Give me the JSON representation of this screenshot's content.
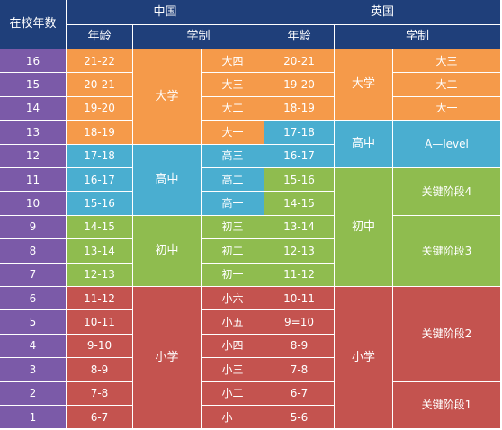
{
  "headers": {
    "years_in_school": "在校年数",
    "china": "中国",
    "uk": "英国",
    "china_age": "年龄",
    "china_system": "学制",
    "uk_age": "年龄",
    "uk_system": "学制"
  },
  "colors": {
    "header": "#1f3f7a",
    "years": "#7b5aa8",
    "university": "#f59a4a",
    "high_school": "#4aaed0",
    "middle_school": "#8fbc4f",
    "primary_school": "#c4534f"
  },
  "years": [
    "16",
    "15",
    "14",
    "13",
    "12",
    "11",
    "10",
    "9",
    "8",
    "7",
    "6",
    "5",
    "4",
    "3",
    "2",
    "1"
  ],
  "china_ages": [
    "21-22",
    "20-21",
    "19-20",
    "18-19",
    "17-18",
    "16-17",
    "15-16",
    "14-15",
    "13-14",
    "12-13",
    "11-12",
    "10-11",
    "9-10",
    "8-9",
    "7-8",
    "6-7"
  ],
  "china_grades": [
    "大四",
    "大三",
    "大二",
    "大一",
    "高三",
    "高二",
    "高一",
    "初三",
    "初二",
    "初一",
    "小六",
    "小五",
    "小四",
    "小三",
    "小二",
    "小一"
  ],
  "china_stages": [
    {
      "label": "大学",
      "color": "university",
      "start": 0,
      "span": 4
    },
    {
      "label": "高中",
      "color": "high_school",
      "start": 4,
      "span": 3
    },
    {
      "label": "初中",
      "color": "middle_school",
      "start": 7,
      "span": 3
    },
    {
      "label": "小学",
      "color": "primary_school",
      "start": 10,
      "span": 6
    }
  ],
  "uk_ages": [
    "20-21",
    "19-20",
    "18-19",
    "17-18",
    "16-17",
    "15-16",
    "14-15",
    "13-14",
    "12-13",
    "11-12",
    "10-11",
    "9=10",
    "8-9",
    "7-8",
    "6-7",
    "5-6"
  ],
  "uk_age_colors": [
    "university",
    "university",
    "university",
    "high_school",
    "high_school",
    "middle_school",
    "middle_school",
    "middle_school",
    "middle_school",
    "middle_school",
    "primary_school",
    "primary_school",
    "primary_school",
    "primary_school",
    "primary_school",
    "primary_school"
  ],
  "uk_stages": [
    {
      "label": "大学",
      "color": "university",
      "start": 0,
      "span": 3
    },
    {
      "label": "高中",
      "color": "high_school",
      "start": 3,
      "span": 2
    },
    {
      "label": "初中",
      "color": "middle_school",
      "start": 5,
      "span": 5
    },
    {
      "label": "小学",
      "color": "primary_school",
      "start": 10,
      "span": 6
    }
  ],
  "uk_system": [
    {
      "label": "大三",
      "color": "university",
      "start": 0,
      "span": 1
    },
    {
      "label": "大二",
      "color": "university",
      "start": 1,
      "span": 1
    },
    {
      "label": "大一",
      "color": "university",
      "start": 2,
      "span": 1
    },
    {
      "label": "A—level",
      "color": "high_school",
      "start": 3,
      "span": 2
    },
    {
      "label": "关键阶段4",
      "color": "middle_school",
      "start": 5,
      "span": 2
    },
    {
      "label": "关键阶段3",
      "color": "middle_school",
      "start": 7,
      "span": 3
    },
    {
      "label": "关键阶段2",
      "color": "primary_school",
      "start": 10,
      "span": 4
    },
    {
      "label": "关键阶段1",
      "color": "primary_school",
      "start": 14,
      "span": 2
    }
  ]
}
